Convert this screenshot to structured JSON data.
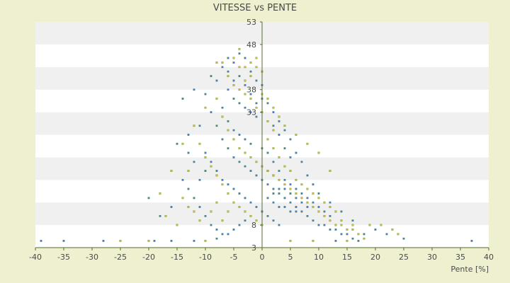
{
  "chart_data": {
    "type": "scatter",
    "title": "VITESSE vs PENTE",
    "xlabel": "Pente [%]",
    "ylabel": "",
    "xlim": [
      -40,
      40
    ],
    "ylim": [
      3,
      53
    ],
    "x_ticks": [
      -40,
      -35,
      -30,
      -25,
      -20,
      -15,
      -10,
      -5,
      0,
      5,
      10,
      15,
      20,
      25,
      30,
      35,
      40
    ],
    "y_ticks": [
      3,
      8,
      13,
      18,
      23,
      28,
      33,
      38,
      43,
      48,
      53
    ],
    "y_tick_labels": [
      {
        "value": 3,
        "label": "3"
      },
      {
        "value": 8,
        "label": "8"
      },
      {
        "value": 33,
        "label": "33"
      },
      {
        "value": 38,
        "label": "38"
      },
      {
        "value": 48,
        "label": "48"
      },
      {
        "value": 53,
        "label": "53"
      }
    ],
    "grid": "horizontal alternating bands",
    "legend": "none",
    "colors": {
      "background": "#eef0cf",
      "plot_band_light": "#ffffff",
      "plot_band_dark": "#f0f0f0",
      "axis": "#556b2f",
      "series_blue": "#2f86d8",
      "series_yellow": "#c9c82a"
    },
    "series": [
      {
        "color": "blue",
        "points": [
          [
            -39,
            4.5
          ],
          [
            -35,
            4.5
          ],
          [
            -28,
            4.5
          ],
          [
            -19,
            4.5
          ],
          [
            -16,
            4.5
          ],
          [
            -12,
            4.5
          ],
          [
            -8,
            5
          ],
          [
            37,
            4.5
          ],
          [
            25,
            5
          ],
          [
            17,
            4.5
          ],
          [
            13,
            4.5
          ],
          [
            -15,
            26
          ],
          [
            -13,
            28
          ],
          [
            -11,
            30
          ],
          [
            -14,
            36
          ],
          [
            -12,
            38
          ],
          [
            -10,
            37
          ],
          [
            -9,
            41
          ],
          [
            -7,
            43
          ],
          [
            -6,
            45
          ],
          [
            -5,
            44
          ],
          [
            -4,
            46
          ],
          [
            -3,
            45
          ],
          [
            -8,
            40
          ],
          [
            -6,
            38
          ],
          [
            -5,
            36
          ],
          [
            -4,
            35
          ],
          [
            -3,
            34
          ],
          [
            -2,
            33
          ],
          [
            -1,
            32
          ],
          [
            -7,
            34
          ],
          [
            -6,
            31
          ],
          [
            -5,
            29
          ],
          [
            -4,
            28
          ],
          [
            -3,
            27
          ],
          [
            -2,
            26
          ],
          [
            -9,
            33
          ],
          [
            -8,
            30
          ],
          [
            -7,
            27
          ],
          [
            -6,
            25
          ],
          [
            -5,
            23
          ],
          [
            -4,
            22
          ],
          [
            -3,
            21
          ],
          [
            -2,
            20
          ],
          [
            -1,
            19
          ],
          [
            0,
            18
          ],
          [
            1,
            17
          ],
          [
            2,
            16
          ],
          [
            3,
            15
          ],
          [
            4,
            14
          ],
          [
            5,
            13
          ],
          [
            6,
            12
          ],
          [
            7,
            11
          ],
          [
            8,
            10
          ],
          [
            9,
            9
          ],
          [
            10,
            8
          ],
          [
            11,
            8
          ],
          [
            12,
            7
          ],
          [
            13,
            7
          ],
          [
            14,
            6
          ],
          [
            15,
            6
          ],
          [
            16,
            5
          ],
          [
            18,
            6
          ],
          [
            20,
            7
          ],
          [
            22,
            6
          ],
          [
            0,
            25
          ],
          [
            1,
            24
          ],
          [
            2,
            22
          ],
          [
            3,
            20
          ],
          [
            4,
            18
          ],
          [
            5,
            17
          ],
          [
            6,
            16
          ],
          [
            7,
            15
          ],
          [
            8,
            14
          ],
          [
            9,
            13
          ],
          [
            10,
            12
          ],
          [
            11,
            11
          ],
          [
            12,
            10
          ],
          [
            -10,
            24
          ],
          [
            -9,
            22
          ],
          [
            -8,
            20
          ],
          [
            -7,
            18
          ],
          [
            -6,
            17
          ],
          [
            -5,
            16
          ],
          [
            -4,
            15
          ],
          [
            -3,
            14
          ],
          [
            -2,
            13
          ],
          [
            -1,
            12
          ],
          [
            0,
            11
          ],
          [
            1,
            10
          ],
          [
            2,
            9
          ],
          [
            3,
            8
          ],
          [
            -12,
            14
          ],
          [
            -11,
            12
          ],
          [
            -10,
            10
          ],
          [
            -9,
            8
          ],
          [
            -8,
            7
          ],
          [
            -7,
            6
          ],
          [
            -6,
            6
          ],
          [
            -5,
            7
          ],
          [
            -4,
            8
          ],
          [
            -3,
            9
          ],
          [
            0,
            36
          ],
          [
            1,
            35
          ],
          [
            2,
            33
          ],
          [
            3,
            31
          ],
          [
            4,
            29
          ],
          [
            5,
            27
          ],
          [
            6,
            24
          ],
          [
            7,
            22
          ],
          [
            8,
            19
          ],
          [
            9,
            17
          ],
          [
            10,
            15
          ],
          [
            12,
            13
          ],
          [
            14,
            11
          ],
          [
            16,
            9
          ],
          [
            -2,
            42
          ],
          [
            -1,
            40
          ],
          [
            0,
            39
          ],
          [
            -3,
            39
          ],
          [
            -4,
            41
          ],
          [
            -5,
            40
          ],
          [
            -6,
            42
          ],
          [
            -2,
            37
          ],
          [
            -1,
            35
          ],
          [
            2,
            30
          ],
          [
            3,
            28
          ],
          [
            4,
            25
          ],
          [
            5,
            23
          ],
          [
            -20,
            14
          ],
          [
            -18,
            10
          ],
          [
            -16,
            12
          ],
          [
            -13,
            16
          ],
          [
            -11,
            18
          ],
          [
            -10,
            20
          ],
          [
            -12,
            22
          ],
          [
            -13,
            24
          ],
          [
            -14,
            18
          ],
          [
            1,
            14
          ],
          [
            2,
            13
          ],
          [
            3,
            12
          ],
          [
            4,
            12
          ],
          [
            5,
            11
          ],
          [
            6,
            11
          ],
          [
            2,
            15
          ],
          [
            3,
            16
          ],
          [
            4,
            16
          ],
          [
            5,
            15
          ],
          [
            6,
            14
          ],
          [
            7,
            13
          ],
          [
            8,
            12
          ],
          [
            1,
            20
          ],
          [
            2,
            19
          ]
        ]
      },
      {
        "color": "yellow",
        "points": [
          [
            -25,
            4.5
          ],
          [
            -20,
            4.5
          ],
          [
            -10,
            4.5
          ],
          [
            5,
            4.5
          ],
          [
            9,
            4.5
          ],
          [
            15,
            4.5
          ],
          [
            -14,
            26
          ],
          [
            -12,
            30
          ],
          [
            -10,
            34
          ],
          [
            -8,
            44
          ],
          [
            -7,
            44
          ],
          [
            -5,
            45
          ],
          [
            -4,
            47
          ],
          [
            -3,
            43
          ],
          [
            -2,
            44
          ],
          [
            -1,
            43
          ],
          [
            0,
            42
          ],
          [
            -6,
            41
          ],
          [
            -5,
            39
          ],
          [
            -4,
            38
          ],
          [
            -3,
            37
          ],
          [
            -2,
            36
          ],
          [
            -1,
            34
          ],
          [
            0,
            33
          ],
          [
            1,
            31
          ],
          [
            2,
            29
          ],
          [
            -8,
            36
          ],
          [
            -7,
            32
          ],
          [
            -6,
            29
          ],
          [
            -5,
            27
          ],
          [
            -4,
            25
          ],
          [
            -3,
            24
          ],
          [
            -2,
            23
          ],
          [
            -1,
            22
          ],
          [
            0,
            21
          ],
          [
            1,
            20
          ],
          [
            2,
            19
          ],
          [
            3,
            18
          ],
          [
            4,
            17
          ],
          [
            5,
            16
          ],
          [
            6,
            15
          ],
          [
            7,
            14
          ],
          [
            8,
            13
          ],
          [
            9,
            12
          ],
          [
            10,
            11
          ],
          [
            11,
            10
          ],
          [
            12,
            9
          ],
          [
            13,
            8
          ],
          [
            14,
            8
          ],
          [
            15,
            7
          ],
          [
            16,
            7
          ],
          [
            17,
            6
          ],
          [
            18,
            5
          ],
          [
            -11,
            26
          ],
          [
            -10,
            23
          ],
          [
            -9,
            21
          ],
          [
            -8,
            19
          ],
          [
            -7,
            17
          ],
          [
            -6,
            15
          ],
          [
            -5,
            13
          ],
          [
            -4,
            12
          ],
          [
            -3,
            11
          ],
          [
            -2,
            10
          ],
          [
            -1,
            9
          ],
          [
            0,
            8
          ],
          [
            -17,
            10
          ],
          [
            -15,
            8
          ],
          [
            -13,
            12
          ],
          [
            -12,
            11
          ],
          [
            -11,
            9
          ],
          [
            -9,
            11
          ],
          [
            -8,
            13
          ],
          [
            -7,
            9
          ],
          [
            -6,
            11
          ],
          [
            1,
            27
          ],
          [
            2,
            25
          ],
          [
            3,
            23
          ],
          [
            4,
            21
          ],
          [
            5,
            20
          ],
          [
            6,
            18
          ],
          [
            7,
            17
          ],
          [
            8,
            16
          ],
          [
            9,
            15
          ],
          [
            10,
            14
          ],
          [
            11,
            13
          ],
          [
            12,
            12
          ],
          [
            13,
            11
          ],
          [
            -1,
            45
          ],
          [
            -2,
            41
          ],
          [
            -3,
            40
          ],
          [
            -4,
            43
          ],
          [
            0,
            37
          ],
          [
            1,
            36
          ],
          [
            2,
            34
          ],
          [
            3,
            32
          ],
          [
            4,
            30
          ],
          [
            6,
            28
          ],
          [
            8,
            26
          ],
          [
            10,
            24
          ],
          [
            12,
            20
          ],
          [
            19,
            8
          ],
          [
            21,
            8
          ],
          [
            23,
            7
          ],
          [
            24,
            6
          ],
          [
            16,
            8
          ],
          [
            14,
            9
          ],
          [
            -16,
            20
          ],
          [
            -18,
            15
          ],
          [
            -14,
            14
          ],
          [
            -13,
            20
          ]
        ]
      }
    ]
  }
}
